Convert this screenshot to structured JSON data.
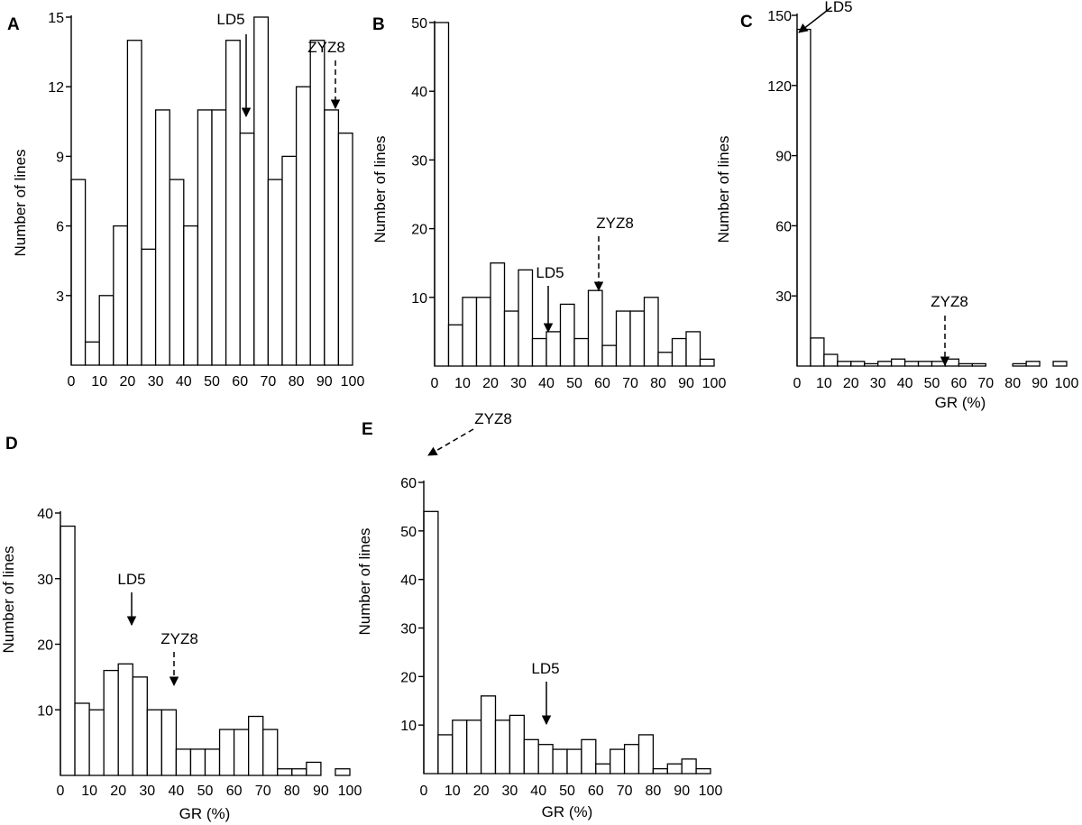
{
  "chart_data": [
    {
      "panel": "A",
      "type": "bar",
      "xlabel": "",
      "ylabel": "Number of lines",
      "xlim": [
        0,
        100
      ],
      "ylim": [
        0,
        15
      ],
      "xticks": [
        0,
        10,
        20,
        30,
        40,
        50,
        60,
        70,
        80,
        90,
        100
      ],
      "xtick_labels": [
        "0",
        "10",
        "20",
        "30",
        "40",
        "50",
        "60",
        "70",
        "80",
        "90",
        "100"
      ],
      "yticks": [
        3,
        6,
        9,
        12,
        15
      ],
      "ytick_labels": [
        "3",
        "6",
        "9",
        "12",
        "15"
      ],
      "bin_width": 5,
      "bin_starts": [
        0,
        5,
        10,
        15,
        20,
        25,
        30,
        35,
        40,
        45,
        50,
        55,
        60,
        65,
        70,
        75,
        80,
        85,
        90,
        95
      ],
      "values": [
        8,
        1,
        3,
        6,
        14,
        5,
        11,
        8,
        6,
        11,
        11,
        14,
        10,
        15,
        8,
        9,
        12,
        14,
        11,
        10
      ],
      "annotations": [
        {
          "label": "LD5",
          "x": 57.5,
          "y": 10,
          "style": "solid"
        },
        {
          "label": "ZYZ8",
          "x": 92.5,
          "y": 11,
          "style": "dashed"
        }
      ]
    },
    {
      "panel": "B",
      "type": "bar",
      "xlabel": "",
      "ylabel": "Number of lines",
      "xlim": [
        0,
        100
      ],
      "ylim": [
        0,
        50
      ],
      "xticks": [
        0,
        10,
        20,
        30,
        40,
        50,
        60,
        70,
        80,
        90,
        100
      ],
      "xtick_labels": [
        "0",
        "10",
        "20",
        "30",
        "40",
        "50",
        "60",
        "70",
        "80",
        "90",
        "100"
      ],
      "yticks": [
        10,
        20,
        30,
        40,
        50
      ],
      "ytick_labels": [
        "10",
        "20",
        "30",
        "40",
        "50"
      ],
      "bin_width": 5,
      "bin_starts": [
        0,
        5,
        10,
        15,
        20,
        25,
        30,
        35,
        40,
        45,
        50,
        55,
        60,
        65,
        70,
        75,
        80,
        85,
        90,
        95
      ],
      "values": [
        50,
        6,
        10,
        10,
        15,
        8,
        14,
        4,
        5,
        9,
        4,
        11,
        3,
        8,
        8,
        10,
        2,
        4,
        5,
        1
      ],
      "annotations": [
        {
          "label": "LD5",
          "x": 42.5,
          "y": 5,
          "style": "solid"
        },
        {
          "label": "ZYZ8",
          "x": 57.5,
          "y": 11,
          "style": "dashed"
        }
      ]
    },
    {
      "panel": "C",
      "type": "bar",
      "xlabel": "GR (%)",
      "ylabel": "Number of lines",
      "xlim": [
        0,
        100
      ],
      "ylim": [
        0,
        150
      ],
      "xticks": [
        0,
        10,
        20,
        30,
        40,
        50,
        60,
        70,
        80,
        90,
        100
      ],
      "xtick_labels": [
        "0",
        "10",
        "20",
        "30",
        "40",
        "50",
        "60",
        "70",
        "80",
        "90",
        "100"
      ],
      "yticks": [
        30,
        60,
        90,
        120,
        150
      ],
      "ytick_labels": [
        "30",
        "60",
        "90",
        "120",
        "150"
      ],
      "bin_width": 5,
      "bin_starts": [
        0,
        5,
        10,
        15,
        20,
        25,
        30,
        35,
        40,
        45,
        50,
        55,
        60,
        65,
        70,
        75,
        80,
        85,
        90,
        95
      ],
      "values": [
        144,
        12,
        5,
        2,
        2,
        1,
        2,
        3,
        2,
        2,
        2,
        3,
        1,
        1,
        0,
        0,
        1,
        2,
        0,
        2
      ],
      "annotations": [
        {
          "label": "LD5",
          "x": 2.5,
          "y": 144,
          "style": "solid"
        },
        {
          "label": "ZYZ8",
          "x": 55,
          "y": 1,
          "style": "dashed"
        }
      ]
    },
    {
      "panel": "D",
      "type": "bar",
      "xlabel": "GR (%)",
      "ylabel": "Number of lines",
      "xlim": [
        0,
        100
      ],
      "ylim": [
        0,
        40
      ],
      "xticks": [
        0,
        10,
        20,
        30,
        40,
        50,
        60,
        70,
        80,
        90,
        100
      ],
      "xtick_labels": [
        "0",
        "10",
        "20",
        "30",
        "40",
        "50",
        "60",
        "70",
        "80",
        "90",
        "100"
      ],
      "yticks": [
        10,
        20,
        30,
        40
      ],
      "ytick_labels": [
        "10",
        "20",
        "30",
        "40"
      ],
      "bin_width": 5,
      "bin_starts": [
        0,
        5,
        10,
        15,
        20,
        25,
        30,
        35,
        40,
        45,
        50,
        55,
        60,
        65,
        70,
        75,
        80,
        85,
        90,
        95
      ],
      "values": [
        38,
        11,
        10,
        16,
        17,
        15,
        10,
        10,
        4,
        4,
        4,
        7,
        7,
        9,
        7,
        1,
        1,
        2,
        0,
        1
      ],
      "annotations": [
        {
          "label": "LD5",
          "x": 22.5,
          "y": 17,
          "style": "solid"
        },
        {
          "label": "ZYZ8",
          "x": 37.5,
          "y": 10,
          "style": "dashed"
        }
      ]
    },
    {
      "panel": "E",
      "type": "bar",
      "xlabel": "GR (%)",
      "ylabel": "Number of lines",
      "xlim": [
        0,
        100
      ],
      "ylim": [
        0,
        60
      ],
      "xticks": [
        0,
        10,
        20,
        30,
        40,
        50,
        60,
        70,
        80,
        90,
        100
      ],
      "xtick_labels": [
        "0",
        "10",
        "20",
        "30",
        "40",
        "50",
        "60",
        "70",
        "80",
        "90",
        "100"
      ],
      "yticks": [
        10,
        20,
        30,
        40,
        50,
        60
      ],
      "ytick_labels": [
        "10",
        "20",
        "30",
        "40",
        "50",
        "60"
      ],
      "bin_width": 5,
      "bin_starts": [
        0,
        5,
        10,
        15,
        20,
        25,
        30,
        35,
        40,
        45,
        50,
        55,
        60,
        65,
        70,
        75,
        80,
        85,
        90,
        95
      ],
      "values": [
        54,
        8,
        11,
        11,
        16,
        11,
        12,
        7,
        6,
        5,
        5,
        7,
        2,
        5,
        6,
        8,
        1,
        2,
        3,
        1
      ],
      "annotations": [
        {
          "label": "LD5",
          "x": 42.5,
          "y": 6,
          "style": "solid"
        },
        {
          "label": "ZYZ8",
          "x": 2.5,
          "y": 54,
          "style": "dashed"
        }
      ]
    }
  ]
}
